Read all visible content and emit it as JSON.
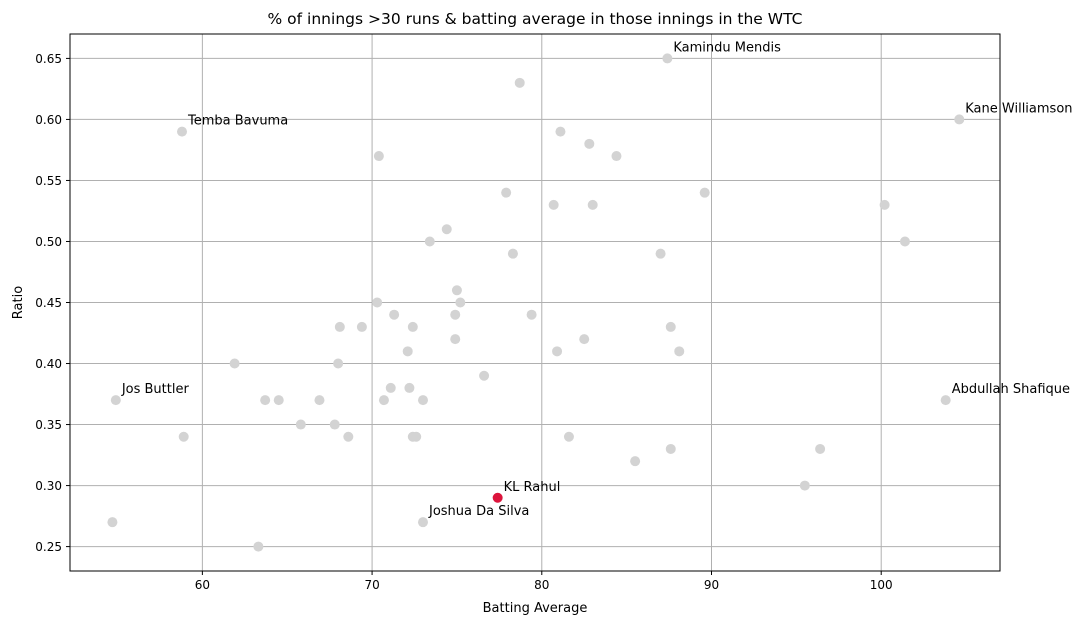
{
  "chart_data": {
    "type": "scatter",
    "title": "% of innings >30 runs & batting average in those innings in the WTC",
    "xlabel": "Batting Average",
    "ylabel": "Ratio",
    "xlim": [
      52.2,
      107.0
    ],
    "ylim": [
      0.23,
      0.67
    ],
    "xticks": [
      60,
      70,
      80,
      90,
      100
    ],
    "yticks": [
      0.25,
      0.3,
      0.35,
      0.4,
      0.45,
      0.5,
      0.55,
      0.6,
      0.65
    ],
    "grid": true,
    "colors": {
      "default": "#d3d3d3",
      "highlight": "#dc143c"
    },
    "points": [
      {
        "x": 54.7,
        "y": 0.27
      },
      {
        "x": 54.9,
        "y": 0.37
      },
      {
        "x": 58.8,
        "y": 0.59
      },
      {
        "x": 58.9,
        "y": 0.34
      },
      {
        "x": 61.9,
        "y": 0.4
      },
      {
        "x": 63.3,
        "y": 0.25
      },
      {
        "x": 63.7,
        "y": 0.37
      },
      {
        "x": 64.5,
        "y": 0.37
      },
      {
        "x": 65.8,
        "y": 0.35
      },
      {
        "x": 66.9,
        "y": 0.37
      },
      {
        "x": 67.8,
        "y": 0.35
      },
      {
        "x": 68.0,
        "y": 0.4
      },
      {
        "x": 68.1,
        "y": 0.43
      },
      {
        "x": 68.6,
        "y": 0.34
      },
      {
        "x": 69.4,
        "y": 0.43
      },
      {
        "x": 70.3,
        "y": 0.45
      },
      {
        "x": 70.4,
        "y": 0.57
      },
      {
        "x": 70.7,
        "y": 0.37
      },
      {
        "x": 71.1,
        "y": 0.38
      },
      {
        "x": 71.3,
        "y": 0.44
      },
      {
        "x": 72.1,
        "y": 0.41
      },
      {
        "x": 72.2,
        "y": 0.38
      },
      {
        "x": 72.4,
        "y": 0.43
      },
      {
        "x": 72.4,
        "y": 0.34
      },
      {
        "x": 72.6,
        "y": 0.34
      },
      {
        "x": 73.0,
        "y": 0.37
      },
      {
        "x": 73.0,
        "y": 0.27
      },
      {
        "x": 73.4,
        "y": 0.5
      },
      {
        "x": 74.4,
        "y": 0.51
      },
      {
        "x": 74.9,
        "y": 0.44
      },
      {
        "x": 74.9,
        "y": 0.42
      },
      {
        "x": 75.0,
        "y": 0.46
      },
      {
        "x": 75.2,
        "y": 0.45
      },
      {
        "x": 76.6,
        "y": 0.39
      },
      {
        "x": 77.4,
        "y": 0.29,
        "highlight": true
      },
      {
        "x": 77.9,
        "y": 0.54
      },
      {
        "x": 78.3,
        "y": 0.49
      },
      {
        "x": 78.7,
        "y": 0.63
      },
      {
        "x": 79.4,
        "y": 0.44
      },
      {
        "x": 80.7,
        "y": 0.53
      },
      {
        "x": 80.9,
        "y": 0.41
      },
      {
        "x": 81.1,
        "y": 0.59
      },
      {
        "x": 81.6,
        "y": 0.34
      },
      {
        "x": 82.5,
        "y": 0.42
      },
      {
        "x": 82.8,
        "y": 0.58
      },
      {
        "x": 83.0,
        "y": 0.53
      },
      {
        "x": 84.4,
        "y": 0.57
      },
      {
        "x": 85.5,
        "y": 0.32
      },
      {
        "x": 87.0,
        "y": 0.49
      },
      {
        "x": 87.4,
        "y": 0.65
      },
      {
        "x": 87.6,
        "y": 0.43
      },
      {
        "x": 87.6,
        "y": 0.33
      },
      {
        "x": 88.1,
        "y": 0.41
      },
      {
        "x": 89.6,
        "y": 0.54
      },
      {
        "x": 95.5,
        "y": 0.3
      },
      {
        "x": 96.4,
        "y": 0.33
      },
      {
        "x": 100.2,
        "y": 0.53
      },
      {
        "x": 101.4,
        "y": 0.5
      },
      {
        "x": 103.8,
        "y": 0.37
      },
      {
        "x": 104.6,
        "y": 0.6
      }
    ],
    "annotations": [
      {
        "text": "Kamindu Mendis",
        "x": 87.4,
        "y": 0.65
      },
      {
        "text": "Kane Williamson",
        "x": 104.6,
        "y": 0.6
      },
      {
        "text": "Temba Bavuma",
        "x": 58.8,
        "y": 0.59
      },
      {
        "text": "Jos Buttler",
        "x": 54.9,
        "y": 0.37
      },
      {
        "text": "Abdullah Shafique",
        "x": 103.8,
        "y": 0.37
      },
      {
        "text": "KL Rahul",
        "x": 77.4,
        "y": 0.29
      },
      {
        "text": "Joshua Da Silva",
        "x": 73.0,
        "y": 0.27
      }
    ]
  }
}
